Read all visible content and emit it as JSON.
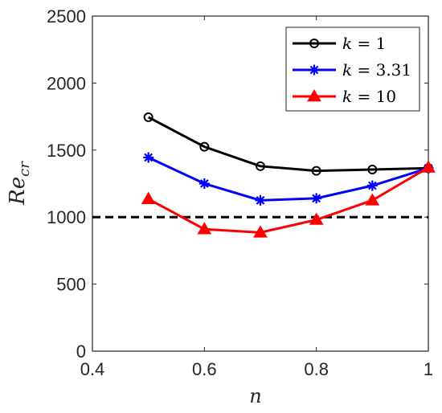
{
  "chart_data": {
    "type": "line",
    "x": [
      0.5,
      0.6,
      0.7,
      0.8,
      0.9,
      1.0
    ],
    "xlim": [
      0.4,
      1.0
    ],
    "ylim": [
      0,
      2500
    ],
    "xticks": [
      "0.4",
      "0.6",
      "0.8",
      "1"
    ],
    "yticks": [
      "0",
      "500",
      "1000",
      "1500",
      "2000",
      "2500"
    ],
    "xlabel": "n",
    "ylabel": {
      "base": "Re",
      "sub": "cr"
    },
    "grid": false,
    "legend_position": "top-right",
    "reference_line": {
      "y": 1000,
      "style": "dashed",
      "color": "#000000"
    },
    "series": [
      {
        "name": "k = 1",
        "symbol": "k",
        "value_text": "= 1",
        "color": "#000000",
        "marker": "circle",
        "values": [
          1745,
          1525,
          1380,
          1345,
          1355,
          1365
        ]
      },
      {
        "name": "k = 3.31",
        "symbol": "k",
        "value_text": "= 3.31",
        "color": "#0000ff",
        "marker": "asterisk",
        "values": [
          1445,
          1250,
          1125,
          1140,
          1235,
          1365
        ]
      },
      {
        "name": "k = 10",
        "symbol": "k",
        "value_text": "= 10",
        "color": "#ff0000",
        "marker": "triangle",
        "values": [
          1135,
          910,
          885,
          980,
          1125,
          1370
        ]
      }
    ]
  }
}
